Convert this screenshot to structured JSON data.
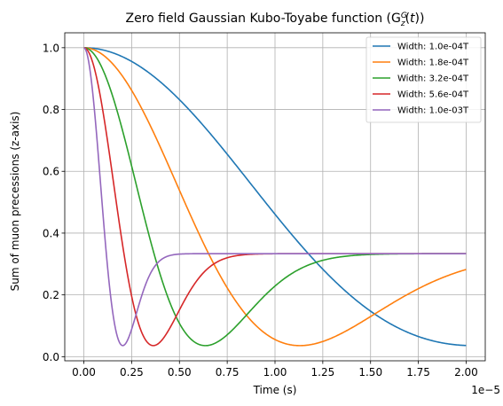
{
  "chart_data": {
    "type": "line",
    "title": "Zero field Gaussian Kubo-Toyabe function",
    "title_math": "(G_z^G(t))",
    "xlabel": "Time (s)",
    "ylabel": "Sum of muon precessions (z-axis)",
    "x_offset_text": "1e−5",
    "xlim": [
      -1e-06,
      2.1e-05
    ],
    "ylim": [
      -0.0133,
      1.0483
    ],
    "xticks": [
      0.0,
      2.5e-06,
      5e-06,
      7.5e-06,
      1e-05,
      1.25e-05,
      1.5e-05,
      1.75e-05,
      2e-05
    ],
    "xtick_labels": [
      "0.00",
      "0.25",
      "0.50",
      "0.75",
      "1.00",
      "1.25",
      "1.50",
      "1.75",
      "2.00"
    ],
    "yticks": [
      0.0,
      0.2,
      0.4,
      0.6,
      0.8,
      1.0
    ],
    "ytick_labels": [
      "0.0",
      "0.2",
      "0.4",
      "0.6",
      "0.8",
      "1.0"
    ],
    "grid": true,
    "legend_position": "top-right",
    "x_range": [
      0,
      2e-05
    ],
    "series": [
      {
        "name": "Width: 1.0e-04T",
        "width_T": 0.0001,
        "color": "#1f77b4"
      },
      {
        "name": "Width: 1.8e-04T",
        "width_T": 0.00018,
        "color": "#ff7f0e"
      },
      {
        "name": "Width: 3.2e-04T",
        "width_T": 0.00032,
        "color": "#2ca02c"
      },
      {
        "name": "Width: 5.6e-04T",
        "width_T": 0.00056,
        "color": "#d62728"
      },
      {
        "name": "Width: 1.0e-03T",
        "width_T": 0.001,
        "color": "#9467bd"
      }
    ]
  }
}
